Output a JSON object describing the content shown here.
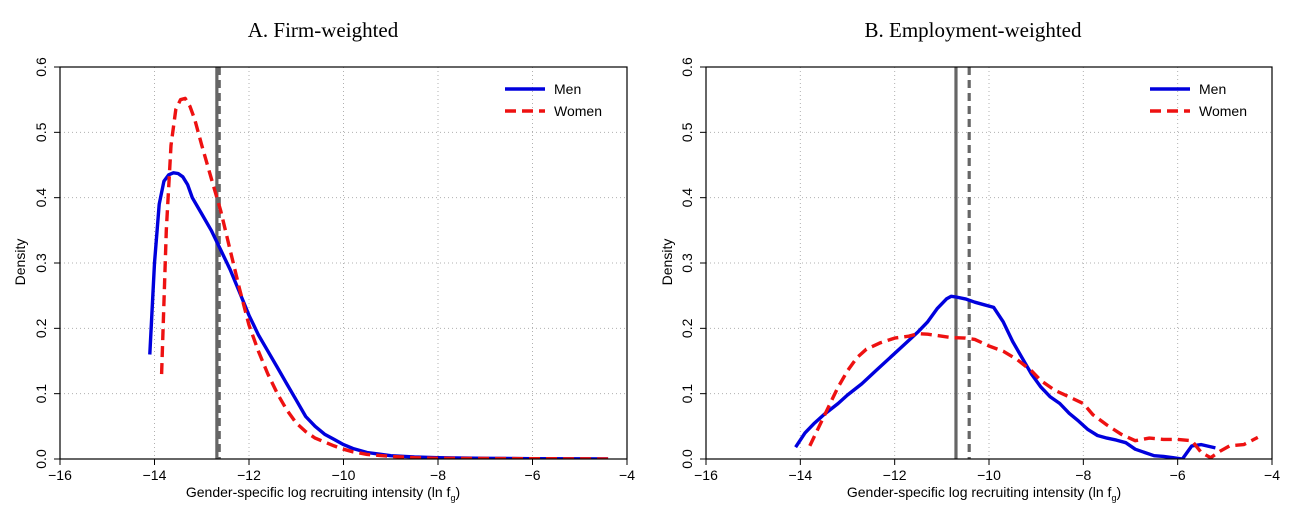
{
  "chart_data": [
    {
      "type": "line",
      "title": "A. Firm-weighted",
      "xlabel": "Gender-specific log recruiting intensity (ln f",
      "xlabel_sub": "g",
      "xlabel_tail": ")",
      "ylabel": "Density",
      "xlim": [
        -16,
        -4
      ],
      "ylim": [
        0,
        0.6
      ],
      "x_ticks": [
        -16,
        -14,
        -12,
        -10,
        -8,
        -6,
        -4
      ],
      "y_ticks": [
        0.0,
        0.1,
        0.2,
        0.3,
        0.4,
        0.5,
        0.6
      ],
      "x_tick_labels": [
        "−16",
        "−14",
        "−12",
        "−10",
        "−8",
        "−6",
        "−4"
      ],
      "y_tick_labels": [
        "0.0",
        "0.1",
        "0.2",
        "0.3",
        "0.4",
        "0.5",
        "0.6"
      ],
      "grid": true,
      "legend_position": "top-right",
      "series": [
        {
          "name": "Men",
          "color": "#0000dd",
          "style": "solid",
          "points": [
            [
              -14.1,
              0.16
            ],
            [
              -14.0,
              0.3
            ],
            [
              -13.9,
              0.39
            ],
            [
              -13.8,
              0.425
            ],
            [
              -13.7,
              0.435
            ],
            [
              -13.6,
              0.438
            ],
            [
              -13.5,
              0.437
            ],
            [
              -13.4,
              0.432
            ],
            [
              -13.3,
              0.42
            ],
            [
              -13.2,
              0.4
            ],
            [
              -13.0,
              0.375
            ],
            [
              -12.8,
              0.35
            ],
            [
              -12.6,
              0.32
            ],
            [
              -12.4,
              0.29
            ],
            [
              -12.2,
              0.255
            ],
            [
              -12.0,
              0.22
            ],
            [
              -11.8,
              0.19
            ],
            [
              -11.6,
              0.165
            ],
            [
              -11.4,
              0.14
            ],
            [
              -11.2,
              0.115
            ],
            [
              -11.0,
              0.09
            ],
            [
              -10.8,
              0.065
            ],
            [
              -10.6,
              0.05
            ],
            [
              -10.4,
              0.038
            ],
            [
              -10.2,
              0.03
            ],
            [
              -10.0,
              0.022
            ],
            [
              -9.8,
              0.016
            ],
            [
              -9.5,
              0.01
            ],
            [
              -9.0,
              0.005
            ],
            [
              -8.5,
              0.003
            ],
            [
              -8.0,
              0.002
            ],
            [
              -7.0,
              0.001
            ],
            [
              -6.0,
              0.0005
            ],
            [
              -5.0,
              0.0003
            ],
            [
              -4.4,
              0.0
            ]
          ]
        },
        {
          "name": "Women",
          "color": "#ee1111",
          "style": "dashed",
          "points": [
            [
              -13.85,
              0.13
            ],
            [
              -13.75,
              0.35
            ],
            [
              -13.65,
              0.48
            ],
            [
              -13.55,
              0.535
            ],
            [
              -13.45,
              0.55
            ],
            [
              -13.35,
              0.552
            ],
            [
              -13.25,
              0.54
            ],
            [
              -13.15,
              0.52
            ],
            [
              -13.0,
              0.48
            ],
            [
              -12.8,
              0.43
            ],
            [
              -12.6,
              0.38
            ],
            [
              -12.4,
              0.32
            ],
            [
              -12.2,
              0.26
            ],
            [
              -12.0,
              0.205
            ],
            [
              -11.8,
              0.165
            ],
            [
              -11.6,
              0.13
            ],
            [
              -11.4,
              0.1
            ],
            [
              -11.2,
              0.075
            ],
            [
              -11.0,
              0.055
            ],
            [
              -10.8,
              0.042
            ],
            [
              -10.6,
              0.032
            ],
            [
              -10.4,
              0.026
            ],
            [
              -10.2,
              0.02
            ],
            [
              -10.0,
              0.015
            ],
            [
              -9.8,
              0.011
            ],
            [
              -9.5,
              0.007
            ],
            [
              -9.0,
              0.004
            ],
            [
              -8.5,
              0.002
            ],
            [
              -8.0,
              0.001
            ],
            [
              -7.0,
              0.0007
            ],
            [
              -6.0,
              0.0005
            ],
            [
              -5.0,
              0.0003
            ],
            [
              -4.4,
              0.0
            ]
          ]
        }
      ],
      "vlines": [
        {
          "x": -12.68,
          "color": "#666666",
          "style": "solid"
        },
        {
          "x": -12.63,
          "color": "#666666",
          "style": "dashed"
        }
      ]
    },
    {
      "type": "line",
      "title": "B. Employment-weighted",
      "xlabel": "Gender-specific log recruiting intensity (ln f",
      "xlabel_sub": "g",
      "xlabel_tail": ")",
      "ylabel": "Density",
      "xlim": [
        -16,
        -4
      ],
      "ylim": [
        0,
        0.6
      ],
      "x_ticks": [
        -16,
        -14,
        -12,
        -10,
        -8,
        -6,
        -4
      ],
      "y_ticks": [
        0.0,
        0.1,
        0.2,
        0.3,
        0.4,
        0.5,
        0.6
      ],
      "x_tick_labels": [
        "−16",
        "−14",
        "−12",
        "−10",
        "−8",
        "−6",
        "−4"
      ],
      "y_tick_labels": [
        "0.0",
        "0.1",
        "0.2",
        "0.3",
        "0.4",
        "0.5",
        "0.6"
      ],
      "grid": true,
      "legend_position": "top-right",
      "series": [
        {
          "name": "Men",
          "color": "#0000dd",
          "style": "solid",
          "points": [
            [
              -14.1,
              0.018
            ],
            [
              -13.9,
              0.04
            ],
            [
              -13.7,
              0.055
            ],
            [
              -13.5,
              0.068
            ],
            [
              -13.2,
              0.085
            ],
            [
              -13.0,
              0.098
            ],
            [
              -12.7,
              0.115
            ],
            [
              -12.4,
              0.135
            ],
            [
              -12.1,
              0.155
            ],
            [
              -11.8,
              0.175
            ],
            [
              -11.5,
              0.195
            ],
            [
              -11.3,
              0.21
            ],
            [
              -11.1,
              0.23
            ],
            [
              -10.9,
              0.245
            ],
            [
              -10.8,
              0.249
            ],
            [
              -10.7,
              0.248
            ],
            [
              -10.5,
              0.245
            ],
            [
              -10.3,
              0.24
            ],
            [
              -10.1,
              0.236
            ],
            [
              -9.9,
              0.232
            ],
            [
              -9.7,
              0.21
            ],
            [
              -9.5,
              0.18
            ],
            [
              -9.3,
              0.155
            ],
            [
              -9.1,
              0.13
            ],
            [
              -8.9,
              0.11
            ],
            [
              -8.7,
              0.095
            ],
            [
              -8.5,
              0.085
            ],
            [
              -8.3,
              0.07
            ],
            [
              -8.1,
              0.058
            ],
            [
              -7.9,
              0.045
            ],
            [
              -7.7,
              0.036
            ],
            [
              -7.5,
              0.032
            ],
            [
              -7.3,
              0.029
            ],
            [
              -7.1,
              0.025
            ],
            [
              -6.9,
              0.015
            ],
            [
              -6.7,
              0.01
            ],
            [
              -6.5,
              0.005
            ],
            [
              -6.3,
              0.004
            ],
            [
              -6.1,
              0.002
            ],
            [
              -5.9,
              0.0
            ],
            [
              -5.7,
              0.02
            ],
            [
              -5.5,
              0.022
            ],
            [
              -5.2,
              0.017
            ]
          ]
        },
        {
          "name": "Women",
          "color": "#ee1111",
          "style": "dashed",
          "points": [
            [
              -13.8,
              0.02
            ],
            [
              -13.6,
              0.05
            ],
            [
              -13.4,
              0.08
            ],
            [
              -13.2,
              0.11
            ],
            [
              -13.0,
              0.135
            ],
            [
              -12.8,
              0.155
            ],
            [
              -12.6,
              0.168
            ],
            [
              -12.3,
              0.178
            ],
            [
              -12.0,
              0.185
            ],
            [
              -11.7,
              0.188
            ],
            [
              -11.5,
              0.192
            ],
            [
              -11.3,
              0.191
            ],
            [
              -11.0,
              0.188
            ],
            [
              -10.8,
              0.186
            ],
            [
              -10.5,
              0.185
            ],
            [
              -10.3,
              0.183
            ],
            [
              -10.0,
              0.173
            ],
            [
              -9.7,
              0.165
            ],
            [
              -9.4,
              0.152
            ],
            [
              -9.1,
              0.135
            ],
            [
              -8.9,
              0.12
            ],
            [
              -8.6,
              0.105
            ],
            [
              -8.3,
              0.095
            ],
            [
              -8.0,
              0.085
            ],
            [
              -7.8,
              0.068
            ],
            [
              -7.5,
              0.052
            ],
            [
              -7.2,
              0.038
            ],
            [
              -6.9,
              0.028
            ],
            [
              -6.6,
              0.032
            ],
            [
              -6.3,
              0.03
            ],
            [
              -6.0,
              0.03
            ],
            [
              -5.7,
              0.028
            ],
            [
              -5.5,
              0.01
            ],
            [
              -5.3,
              0.002
            ],
            [
              -5.1,
              0.012
            ],
            [
              -4.9,
              0.02
            ],
            [
              -4.6,
              0.022
            ],
            [
              -4.3,
              0.033
            ]
          ]
        }
      ],
      "vlines": [
        {
          "x": -10.7,
          "color": "#666666",
          "style": "solid"
        },
        {
          "x": -10.42,
          "color": "#666666",
          "style": "dashed"
        }
      ]
    }
  ]
}
